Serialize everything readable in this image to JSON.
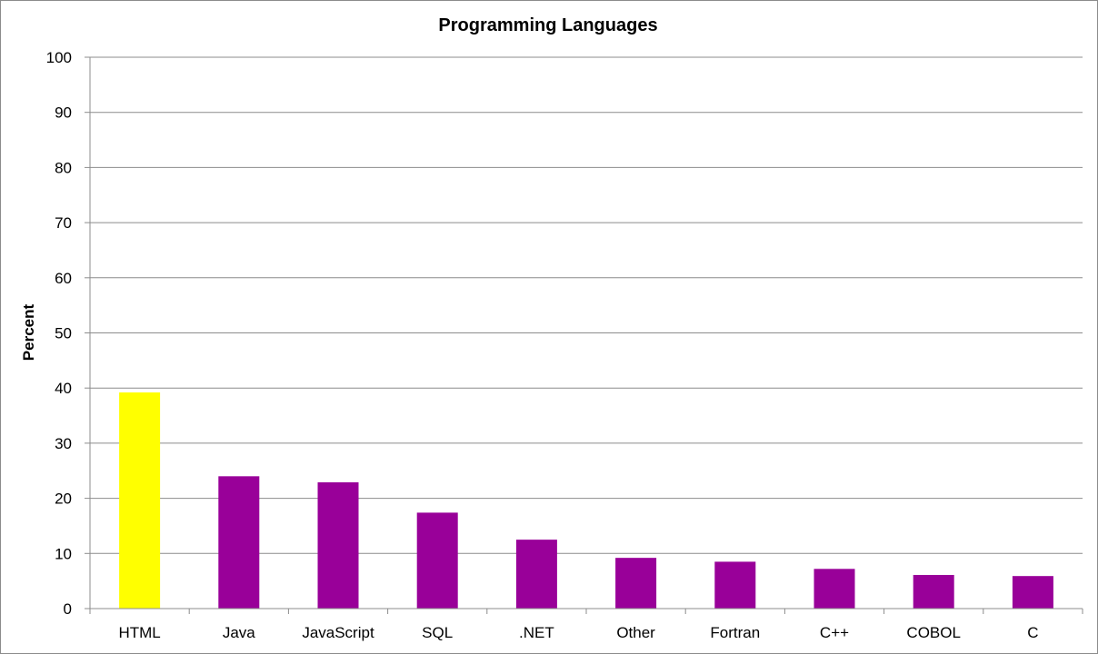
{
  "chart_data": {
    "type": "bar",
    "title": "Programming Languages",
    "xlabel": "",
    "ylabel": "Percent",
    "ylim": [
      0,
      100
    ],
    "yticks": [
      0,
      10,
      20,
      30,
      40,
      50,
      60,
      70,
      80,
      90,
      100
    ],
    "grid": true,
    "categories": [
      "HTML",
      "Java",
      "JavaScript",
      "SQL",
      ".NET",
      "Other",
      "Fortran",
      "C++",
      "COBOL",
      "C"
    ],
    "values": [
      39.2,
      24,
      22.9,
      17.4,
      12.5,
      9.2,
      8.5,
      7.2,
      6.1,
      5.9
    ],
    "colors": {
      "highlight": "#ffff00",
      "default": "#990099",
      "highlight_categories": [
        "HTML"
      ]
    }
  }
}
